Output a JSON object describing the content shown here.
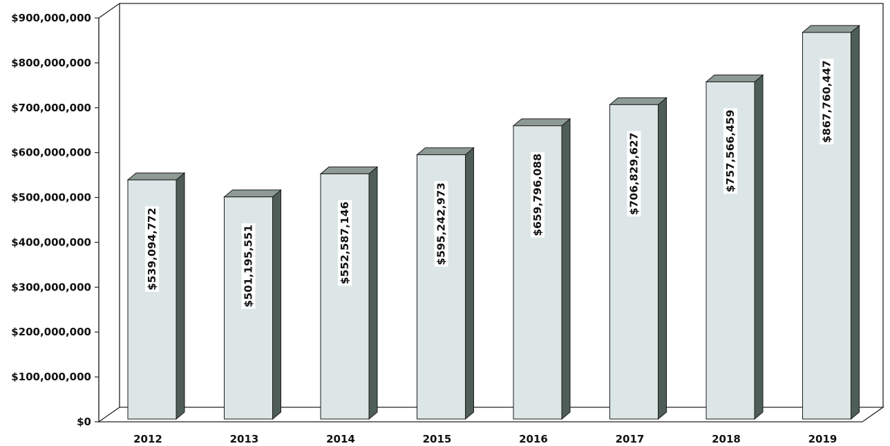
{
  "chart_data": {
    "type": "bar",
    "style": "3d-column",
    "categories": [
      "2012",
      "2013",
      "2014",
      "2015",
      "2016",
      "2017",
      "2018",
      "2019"
    ],
    "values": [
      539094772,
      501195551,
      552587146,
      595242973,
      659796088,
      706829627,
      757566459,
      867760447
    ],
    "data_labels": [
      "$539,094,772",
      "$501,195,551",
      "$552,587,146",
      "$595,242,973",
      "$659,796,088",
      "$706,829,627",
      "$757,566,459",
      "$867,760,447"
    ],
    "y_ticks": [
      "$0",
      "$100,000,000",
      "$200,000,000",
      "$300,000,000",
      "$400,000,000",
      "$500,000,000",
      "$600,000,000",
      "$700,000,000",
      "$800,000,000",
      "$900,000,000"
    ],
    "ylim": [
      0,
      900000000
    ],
    "title": "",
    "xlabel": "",
    "ylabel": "",
    "grid": false,
    "legend": "none",
    "colors": {
      "bar_front": "#dce6e6",
      "bar_top": "#8e9a95",
      "bar_side": "#4f5d58",
      "bar_edge": "#1a1a1a",
      "axis": "#222222"
    }
  }
}
